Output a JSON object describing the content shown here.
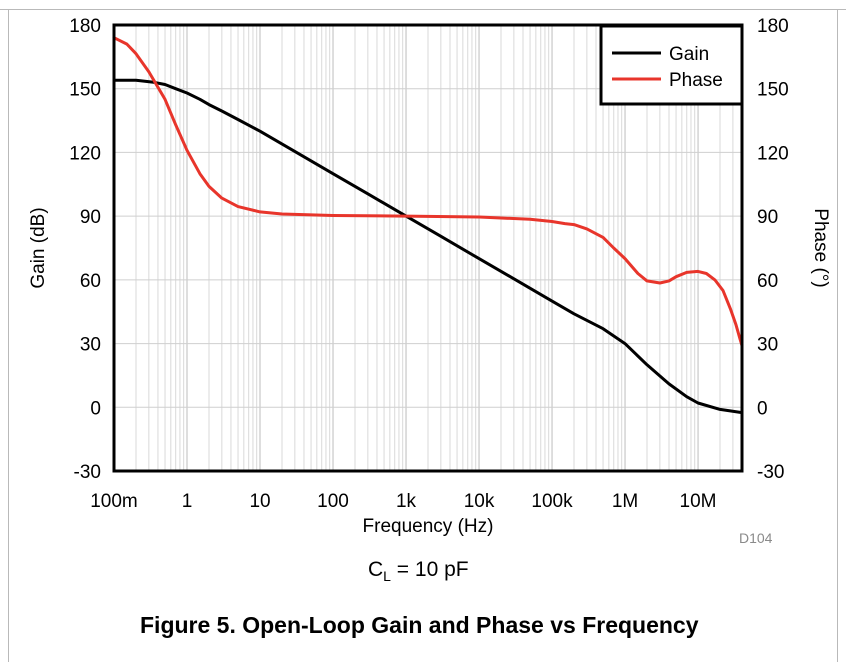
{
  "chart_data": {
    "type": "line",
    "x_scale": "log",
    "xlabel": "Frequency (Hz)",
    "ylabel_left": "Gain (dB)",
    "ylabel_right": "Phase (°)",
    "xlim": [
      0.1,
      40000000
    ],
    "ylim_left": [
      -30,
      180
    ],
    "ylim_right": [
      -30,
      180
    ],
    "x_ticks": [
      {
        "value": 0.1,
        "label": "100m"
      },
      {
        "value": 1,
        "label": "1"
      },
      {
        "value": 10,
        "label": "10"
      },
      {
        "value": 100,
        "label": "100"
      },
      {
        "value": 1000,
        "label": "1k"
      },
      {
        "value": 10000,
        "label": "10k"
      },
      {
        "value": 100000,
        "label": "100k"
      },
      {
        "value": 1000000,
        "label": "1M"
      },
      {
        "value": 10000000,
        "label": "10M"
      }
    ],
    "y_ticks_left": [
      "180",
      "150",
      "120",
      "90",
      "60",
      "30",
      "0",
      "-30"
    ],
    "y_ticks_right": [
      "180",
      "150",
      "120",
      "90",
      "60",
      "30",
      "0",
      "-30"
    ],
    "y_tick_values": [
      180,
      150,
      120,
      90,
      60,
      30,
      0,
      -30
    ],
    "grid": true,
    "legend_position": "top-right",
    "series": [
      {
        "name": "Gain",
        "color": "#000000",
        "axis": "left",
        "points": [
          [
            0.1,
            154
          ],
          [
            0.2,
            154
          ],
          [
            0.35,
            153
          ],
          [
            0.5,
            152
          ],
          [
            0.7,
            150
          ],
          [
            1,
            148
          ],
          [
            1.5,
            145
          ],
          [
            2,
            142.5
          ],
          [
            3,
            139.5
          ],
          [
            5,
            135.5
          ],
          [
            10,
            130
          ],
          [
            30,
            120.5
          ],
          [
            100,
            110
          ],
          [
            300,
            100.5
          ],
          [
            1000,
            90
          ],
          [
            3000,
            80.5
          ],
          [
            10000,
            70
          ],
          [
            30000,
            60.5
          ],
          [
            100000,
            50
          ],
          [
            200000,
            44
          ],
          [
            500000,
            37
          ],
          [
            1000000,
            30
          ],
          [
            2000000,
            20
          ],
          [
            4000000,
            11
          ],
          [
            7000000,
            5
          ],
          [
            10000000,
            2
          ],
          [
            20000000,
            -1
          ],
          [
            40000000,
            -2.5
          ]
        ]
      },
      {
        "name": "Phase",
        "color": "#e8352b",
        "axis": "right",
        "points": [
          [
            0.1,
            174
          ],
          [
            0.15,
            171
          ],
          [
            0.2,
            166.5
          ],
          [
            0.3,
            158
          ],
          [
            0.5,
            145
          ],
          [
            0.7,
            133
          ],
          [
            1,
            121
          ],
          [
            1.5,
            110
          ],
          [
            2,
            104
          ],
          [
            3,
            98.5
          ],
          [
            5,
            94.5
          ],
          [
            10,
            92
          ],
          [
            20,
            91
          ],
          [
            100,
            90.3
          ],
          [
            1000,
            90
          ],
          [
            10000,
            89.6
          ],
          [
            50000,
            88.5
          ],
          [
            100000,
            87.5
          ],
          [
            150000,
            86.5
          ],
          [
            200000,
            86
          ],
          [
            300000,
            84
          ],
          [
            500000,
            80
          ],
          [
            700000,
            75
          ],
          [
            1000000,
            70
          ],
          [
            1500000,
            63
          ],
          [
            2000000,
            59.5
          ],
          [
            3000000,
            58.5
          ],
          [
            4000000,
            59.5
          ],
          [
            5000000,
            61.5
          ],
          [
            7000000,
            63.5
          ],
          [
            10000000,
            64
          ],
          [
            13000000,
            63
          ],
          [
            17000000,
            60
          ],
          [
            22000000,
            55
          ],
          [
            28000000,
            46
          ],
          [
            33000000,
            39
          ],
          [
            37000000,
            33
          ],
          [
            40000000,
            29
          ]
        ]
      }
    ]
  },
  "chart_id": "D104",
  "condition": {
    "symbol": "C",
    "subscript": "L",
    "value": " = 10 pF"
  },
  "caption": "Figure 5. Open-Loop Gain and Phase vs Frequency"
}
